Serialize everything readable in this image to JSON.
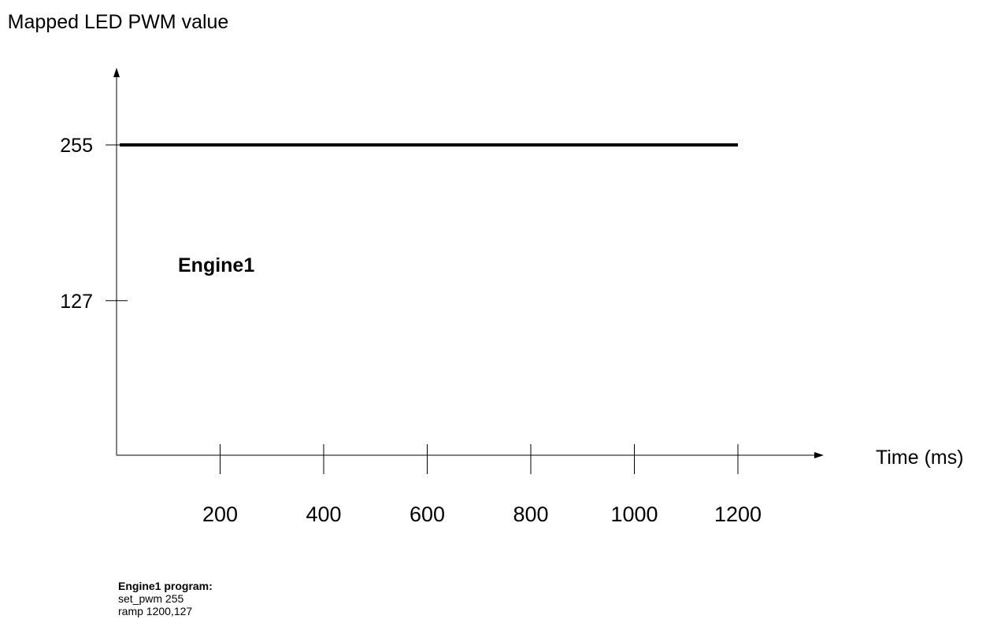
{
  "chart_data": {
    "type": "line",
    "title": "",
    "ylabel": "Mapped LED PWM value",
    "xlabel": "Time (ms)",
    "x_ticks": [
      200,
      400,
      600,
      800,
      1000,
      1200
    ],
    "y_ticks": [
      127,
      255
    ],
    "xlim": [
      0,
      1600
    ],
    "ylim": [
      0,
      255
    ],
    "series": [
      {
        "name": "Engine1",
        "x": [
          0,
          1200
        ],
        "y": [
          255,
          255
        ]
      }
    ],
    "grid": false
  },
  "program": {
    "title": "Engine1 program:",
    "lines": [
      "set_pwm 255",
      "ramp 1200,127"
    ]
  }
}
